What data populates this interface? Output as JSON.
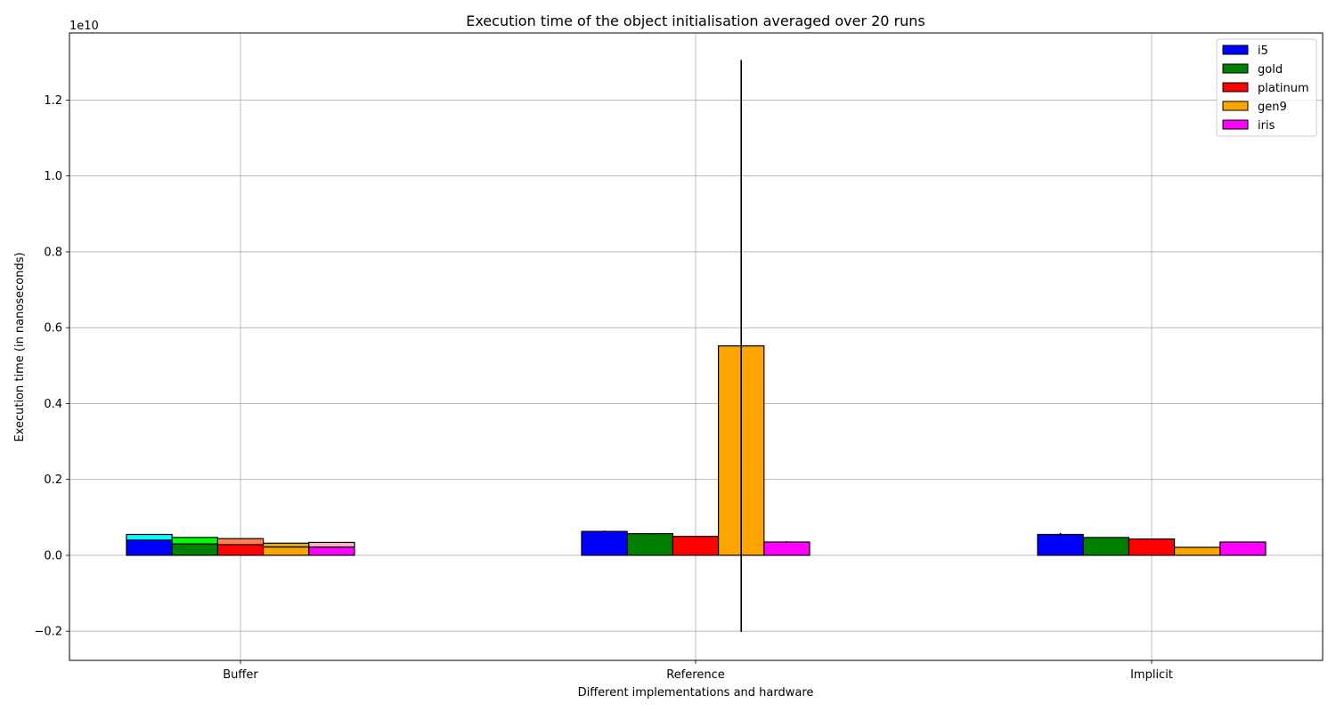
{
  "chart_data": {
    "type": "bar",
    "title": "Execution time of the object initialisation averaged over 20 runs",
    "xlabel": "Different implementations and hardware",
    "ylabel": "Execution time (in nanoseconds)",
    "offset_text": "1e10",
    "categories": [
      "Buffer",
      "Reference",
      "Implicit"
    ],
    "ylim": [
      -0.277,
      1.377
    ],
    "yticks": [
      -0.2,
      0.0,
      0.2,
      0.4,
      0.6,
      0.8,
      1.0,
      1.2
    ],
    "ytick_labels": [
      "−0.2",
      "0.0",
      "0.2",
      "0.4",
      "0.6",
      "0.8",
      "1.0",
      "1.2"
    ],
    "grid": true,
    "legend_position": "top-right",
    "series": [
      {
        "name": "i5",
        "color": "#0000ff",
        "values": [
          0.04,
          0.063,
          0.055
        ],
        "errors": [
          0.001,
          0.002,
          0.004
        ]
      },
      {
        "name": "gold",
        "color": "#008000",
        "values": [
          0.03,
          0.057,
          0.047
        ],
        "errors": [
          0.001,
          0.001,
          0.001
        ]
      },
      {
        "name": "platinum",
        "color": "#ff0000",
        "values": [
          0.028,
          0.05,
          0.043
        ],
        "errors": [
          0.001,
          0.001,
          0.001
        ]
      },
      {
        "name": "gen9",
        "color": "#ffa500",
        "values": [
          0.022,
          0.552,
          0.021
        ],
        "errors": [
          0.001,
          0.754,
          0.001
        ]
      },
      {
        "name": "iris",
        "color": "#ff00ff",
        "values": [
          0.022,
          0.035,
          0.035
        ],
        "errors": [
          0.001,
          0.002,
          0.001
        ]
      }
    ],
    "stacked_extras": {
      "category": "Buffer",
      "colors": [
        "#00ffff",
        "#00ff00",
        "#ff7f50",
        "#daa520",
        "#ffb6c1"
      ],
      "values": [
        0.015,
        0.017,
        0.016,
        0.01,
        0.012
      ]
    }
  }
}
